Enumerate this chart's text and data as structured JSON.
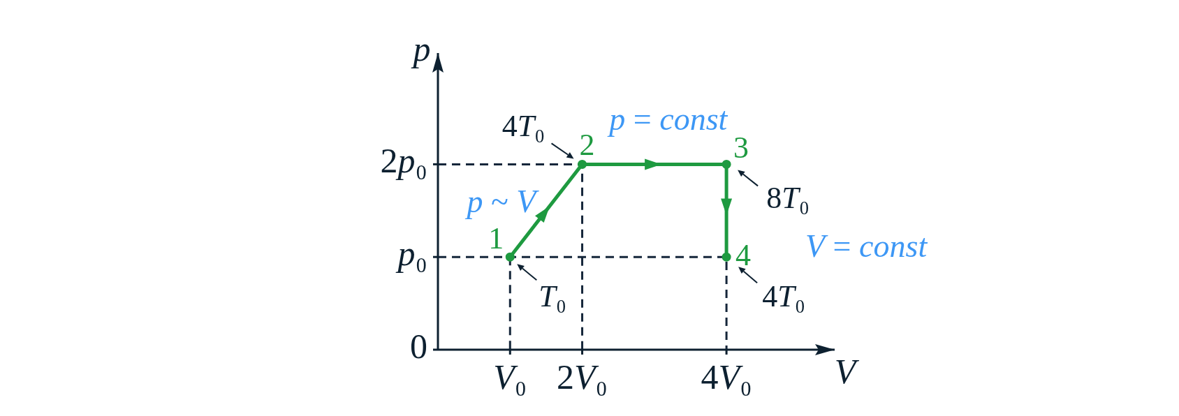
{
  "chart_data": {
    "type": "line",
    "xlabel": "V",
    "ylabel": "p",
    "xlim": [
      0,
      5.5
    ],
    "ylim": [
      0,
      3.2
    ],
    "xticks": [
      {
        "value": 1,
        "label": "V₀"
      },
      {
        "value": 2,
        "label": "2V₀"
      },
      {
        "value": 4,
        "label": "4V₀"
      }
    ],
    "yticks": [
      0,
      {
        "value": 1,
        "label": "p₀"
      },
      {
        "value": 2,
        "label": "2p₀"
      }
    ],
    "series": [
      {
        "color": "#15263a",
        "x": [
          0,
          2,
          2
        ],
        "values": [
          2,
          2,
          0
        ],
        "marker": "none",
        "line_style": "dashed"
      },
      {
        "color": "#15263a",
        "x": [
          0,
          4,
          4
        ],
        "values": [
          1,
          1,
          0
        ],
        "marker": "none",
        "line_style": "dashed"
      },
      {
        "color": "#15263a",
        "x": [
          1,
          1
        ],
        "values": [
          1,
          0
        ],
        "marker": "none",
        "line_style": "dashed"
      },
      {
        "color": "#1e9a40",
        "x": [
          1,
          2,
          4,
          4
        ],
        "values": [
          1,
          2,
          2,
          1
        ],
        "marker": "circle",
        "line_style": "solid"
      }
    ],
    "annotations": [
      {
        "text": "p = const",
        "x": 3,
        "y": 2
      },
      {
        "text": "p ~ V",
        "x": 1.5,
        "y": 1.5
      },
      {
        "text": "V = const",
        "x": 4,
        "y": 1.5
      },
      {
        "text": "1",
        "x": 1,
        "y": 1
      },
      {
        "text": "2",
        "x": 2,
        "y": 2
      },
      {
        "text": "3",
        "x": 4,
        "y": 2
      },
      {
        "text": "4",
        "x": 4,
        "y": 1
      },
      {
        "text": "T₀",
        "x": 1,
        "y": 1
      },
      {
        "text": "4T₀",
        "x": 2,
        "y": 2
      },
      {
        "text": "8T₀",
        "x": 4,
        "y": 2
      },
      {
        "text": "4T₀",
        "x": 4,
        "y": 1
      }
    ]
  }
}
